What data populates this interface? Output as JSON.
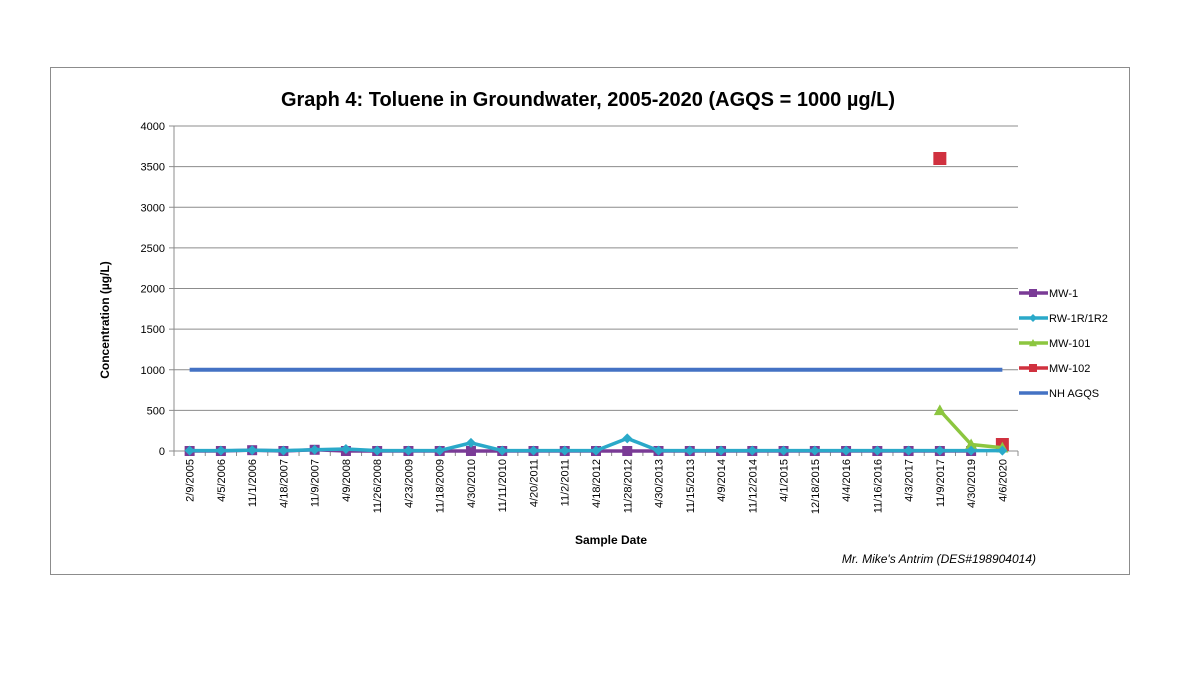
{
  "chart_data": {
    "type": "line",
    "title": "Graph 4: Toluene in Groundwater, 2005-2020 (AGQS = 1000 µg/L)",
    "xlabel": "Sample Date",
    "ylabel": "Concentration (µg/L)",
    "ylim": [
      0,
      4000
    ],
    "ytick_step": 500,
    "yticks": [
      "0",
      "500",
      "1000",
      "1500",
      "2000",
      "2500",
      "3000",
      "3500",
      "4000"
    ],
    "grid": true,
    "legend_position": "right",
    "categories": [
      "2/9/2005",
      "4/5/2006",
      "11/1/2006",
      "4/18/2007",
      "11/9/2007",
      "4/9/2008",
      "11/26/2008",
      "4/23/2009",
      "11/18/2009",
      "4/30/2010",
      "11/11/2010",
      "4/20/2011",
      "11/2/2011",
      "4/18/2012",
      "11/28/2012",
      "4/30/2013",
      "11/15/2013",
      "4/9/2014",
      "11/12/2014",
      "4/1/2015",
      "12/18/2015",
      "4/4/2016",
      "11/16/2016",
      "4/3/2017",
      "11/9/2017",
      "4/30/2019",
      "4/6/2020"
    ],
    "series": [
      {
        "name": "MW-1",
        "color": "#7a3b96",
        "marker": "square",
        "values": [
          0,
          0,
          10,
          0,
          15,
          0,
          0,
          0,
          0,
          0,
          0,
          0,
          0,
          0,
          0,
          0,
          0,
          0,
          0,
          0,
          0,
          0,
          0,
          0,
          0,
          0,
          null
        ]
      },
      {
        "name": "RW-1R/1R2",
        "color": "#2aa9c9",
        "marker": "diamond",
        "values": [
          5,
          5,
          10,
          5,
          15,
          25,
          5,
          5,
          5,
          100,
          5,
          5,
          5,
          5,
          155,
          5,
          5,
          5,
          5,
          5,
          5,
          5,
          5,
          5,
          5,
          5,
          5
        ]
      },
      {
        "name": "MW-101",
        "color": "#8cc63f",
        "marker": "triangle",
        "values": [
          null,
          null,
          null,
          null,
          null,
          null,
          null,
          null,
          null,
          null,
          null,
          null,
          null,
          null,
          null,
          null,
          null,
          null,
          null,
          null,
          null,
          null,
          null,
          null,
          500,
          80,
          40
        ]
      },
      {
        "name": "MW-102",
        "color": "#d0313f",
        "marker": "square",
        "values": [
          null,
          null,
          null,
          null,
          null,
          null,
          null,
          null,
          null,
          null,
          null,
          null,
          null,
          null,
          null,
          null,
          null,
          null,
          null,
          null,
          null,
          null,
          null,
          null,
          3600,
          null,
          80
        ]
      },
      {
        "name": "NH AGQS",
        "color": "#4472c4",
        "marker": "none",
        "values": [
          1000,
          1000,
          1000,
          1000,
          1000,
          1000,
          1000,
          1000,
          1000,
          1000,
          1000,
          1000,
          1000,
          1000,
          1000,
          1000,
          1000,
          1000,
          1000,
          1000,
          1000,
          1000,
          1000,
          1000,
          1000,
          1000,
          1000
        ]
      }
    ],
    "annotation": "Mr. Mike's Antrim (DES#198904014)"
  }
}
